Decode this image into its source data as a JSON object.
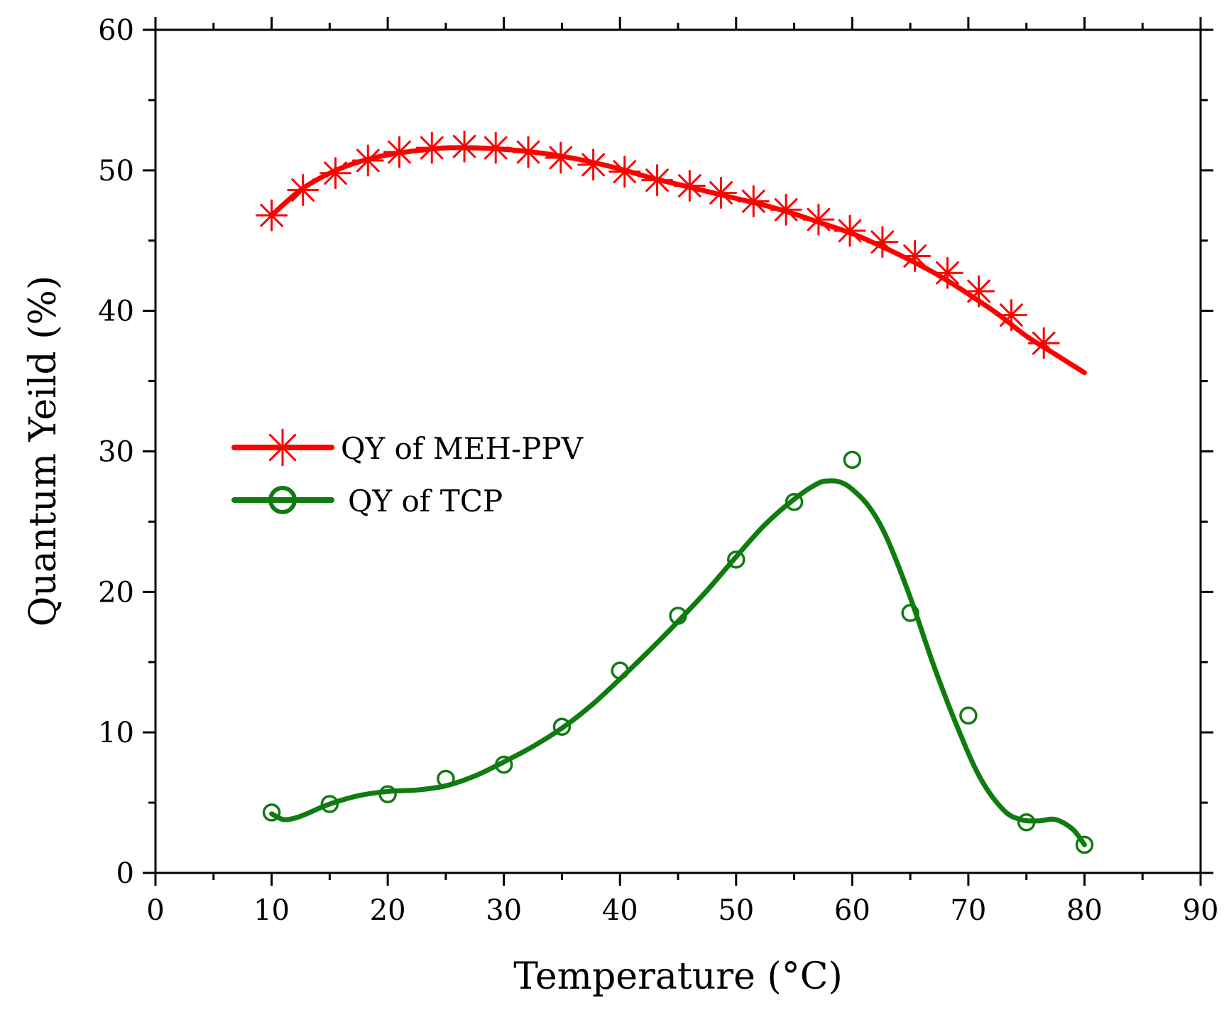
{
  "chart_data": {
    "type": "line",
    "title": "",
    "xlabel": "Temperature (°C)",
    "ylabel": "Quantum Yeild (%)",
    "xlim": [
      0,
      90
    ],
    "ylim": [
      0,
      60
    ],
    "x_ticks": [
      "0",
      "10",
      "20",
      "30",
      "40",
      "50",
      "60",
      "70",
      "80",
      "90"
    ],
    "y_ticks": [
      "0",
      "10",
      "20",
      "30",
      "40",
      "50",
      "60"
    ],
    "grid": false,
    "legend_position": "middle-left",
    "series": [
      {
        "name": "QY of MEH-PPV",
        "color": "#ff0000",
        "marker": "asterisk",
        "points": [
          [
            10,
            46.8
          ],
          [
            12.7,
            48.6
          ],
          [
            15.5,
            49.8
          ],
          [
            18.3,
            50.7
          ],
          [
            21.0,
            51.3
          ],
          [
            23.8,
            51.6
          ],
          [
            26.6,
            51.7
          ],
          [
            29.3,
            51.6
          ],
          [
            32.1,
            51.3
          ],
          [
            34.9,
            50.9
          ],
          [
            37.7,
            50.4
          ],
          [
            40.4,
            49.9
          ],
          [
            43.2,
            49.3
          ],
          [
            46.0,
            48.9
          ],
          [
            48.7,
            48.4
          ],
          [
            51.5,
            47.8
          ],
          [
            54.3,
            47.2
          ],
          [
            57.1,
            46.5
          ],
          [
            59.8,
            45.7
          ],
          [
            62.6,
            44.9
          ],
          [
            65.4,
            43.9
          ],
          [
            68.2,
            42.7
          ],
          [
            70.9,
            41.4
          ],
          [
            73.7,
            39.7
          ],
          [
            76.5,
            37.7
          ]
        ],
        "fit": [
          [
            10,
            46.8
          ],
          [
            12.5,
            48.6
          ],
          [
            15,
            49.8
          ],
          [
            17.5,
            50.6
          ],
          [
            20,
            51.1
          ],
          [
            22.5,
            51.4
          ],
          [
            25,
            51.6
          ],
          [
            27.5,
            51.6
          ],
          [
            30,
            51.5
          ],
          [
            32.5,
            51.3
          ],
          [
            35,
            51.0
          ],
          [
            37.5,
            50.6
          ],
          [
            40,
            50.1
          ],
          [
            42.5,
            49.5
          ],
          [
            45,
            49.0
          ],
          [
            47.5,
            48.5
          ],
          [
            50,
            48.0
          ],
          [
            52.5,
            47.5
          ],
          [
            55,
            46.9
          ],
          [
            57.5,
            46.2
          ],
          [
            60,
            45.5
          ],
          [
            62.5,
            44.6
          ],
          [
            65,
            43.6
          ],
          [
            67.5,
            42.5
          ],
          [
            70,
            41.2
          ],
          [
            72.5,
            39.8
          ],
          [
            75,
            38.2
          ],
          [
            77.5,
            36.9
          ],
          [
            80,
            35.6
          ]
        ]
      },
      {
        "name": "QY of TCP",
        "color": "#107c10",
        "marker": "circle",
        "points": [
          [
            10,
            4.3
          ],
          [
            15,
            4.9
          ],
          [
            20,
            5.6
          ],
          [
            25,
            6.7
          ],
          [
            30,
            7.7
          ],
          [
            35,
            10.4
          ],
          [
            40,
            14.4
          ],
          [
            45,
            18.3
          ],
          [
            50,
            22.3
          ],
          [
            55,
            26.4
          ],
          [
            60,
            29.4
          ],
          [
            65,
            18.5
          ],
          [
            70,
            11.2
          ],
          [
            75,
            3.6
          ],
          [
            80,
            2.0
          ]
        ],
        "fit": [
          [
            10,
            4.2
          ],
          [
            11,
            3.8
          ],
          [
            12,
            3.9
          ],
          [
            13,
            4.2
          ],
          [
            15,
            4.9
          ],
          [
            17.5,
            5.5
          ],
          [
            20,
            5.8
          ],
          [
            22.5,
            5.9
          ],
          [
            25,
            6.2
          ],
          [
            27.5,
            6.9
          ],
          [
            30,
            7.9
          ],
          [
            32.5,
            9.0
          ],
          [
            35,
            10.3
          ],
          [
            37.5,
            11.9
          ],
          [
            40,
            13.8
          ],
          [
            42.5,
            15.8
          ],
          [
            45,
            17.9
          ],
          [
            47.5,
            20.1
          ],
          [
            50,
            22.5
          ],
          [
            52.5,
            24.8
          ],
          [
            55,
            26.6
          ],
          [
            57,
            27.7
          ],
          [
            58,
            27.9
          ],
          [
            59,
            27.8
          ],
          [
            60,
            27.3
          ],
          [
            61.5,
            26.0
          ],
          [
            63,
            23.8
          ],
          [
            65,
            19.6
          ],
          [
            67,
            14.8
          ],
          [
            69,
            10.5
          ],
          [
            71,
            6.8
          ],
          [
            73,
            4.5
          ],
          [
            74.5,
            3.8
          ],
          [
            76,
            3.7
          ],
          [
            77.5,
            3.8
          ],
          [
            79,
            3.1
          ],
          [
            80,
            2.0
          ]
        ]
      }
    ]
  }
}
